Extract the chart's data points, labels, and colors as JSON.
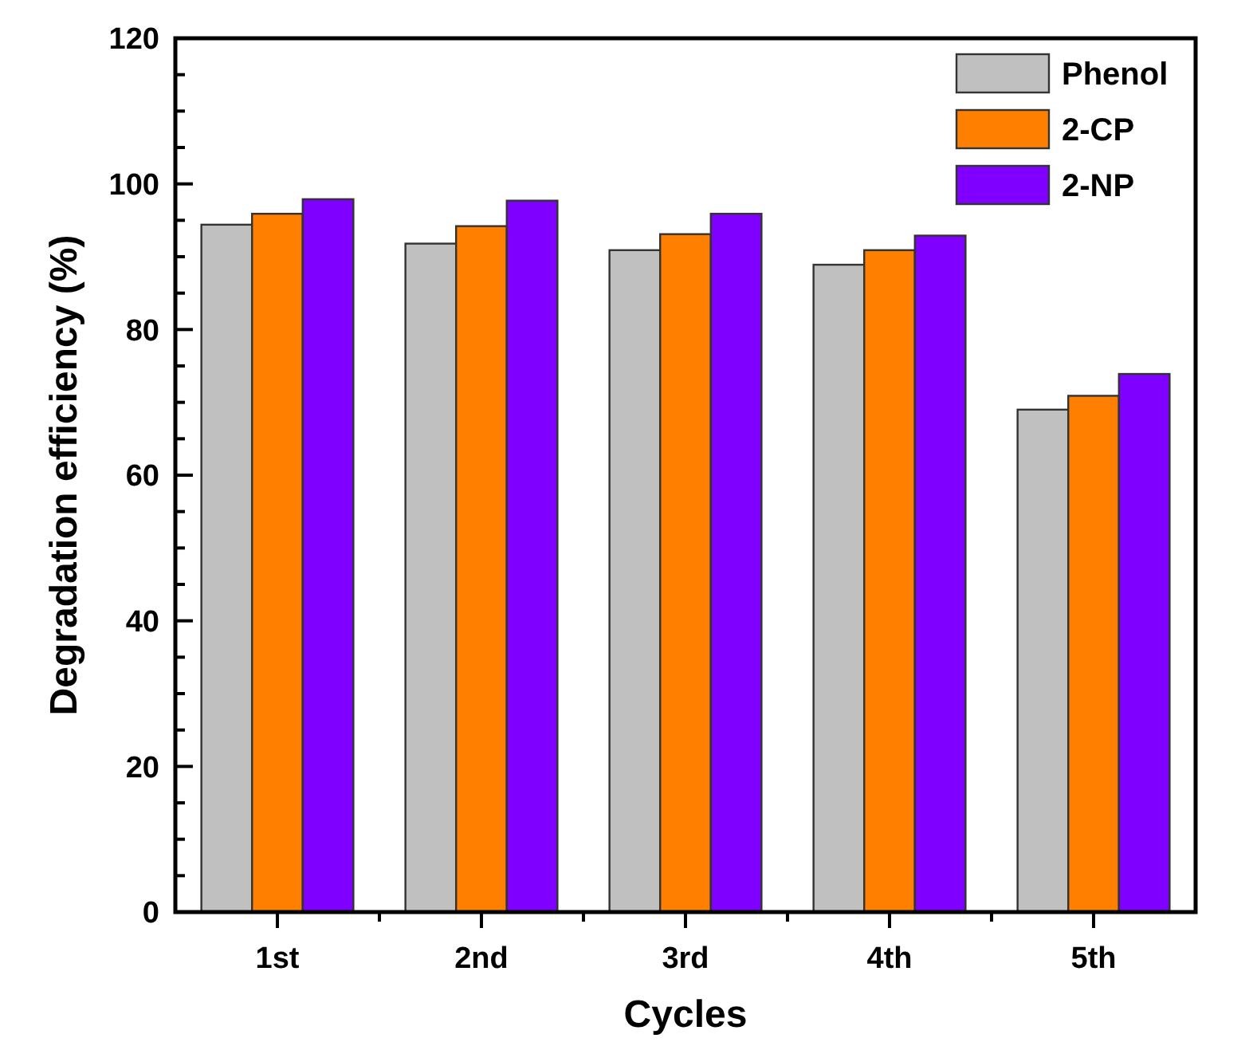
{
  "chart_data": {
    "type": "bar",
    "xlabel": "Cycles",
    "ylabel": "Degradation efficiency (%)",
    "categories": [
      "1st",
      "2nd",
      "3rd",
      "4th",
      "5th"
    ],
    "series": [
      {
        "name": "Phenol",
        "color": "#c0c0c0",
        "values": [
          94.4,
          91.8,
          90.9,
          88.9,
          69.0
        ]
      },
      {
        "name": "2-CP",
        "color": "#ff8000",
        "values": [
          95.9,
          94.2,
          93.1,
          90.9,
          70.9
        ]
      },
      {
        "name": "2-NP",
        "color": "#8000ff",
        "values": [
          97.9,
          97.7,
          95.9,
          92.9,
          73.9
        ]
      }
    ],
    "ylim": [
      0,
      120
    ],
    "yticks": [
      0,
      {
        "value": 5,
        "label": null
      },
      {
        "value": 10,
        "label": null
      },
      {
        "value": 15,
        "label": null
      },
      20,
      {
        "value": 25,
        "label": null
      },
      {
        "value": 30,
        "label": null
      },
      {
        "value": 35,
        "label": null
      },
      40,
      {
        "value": 45,
        "label": null
      },
      {
        "value": 50,
        "label": null
      },
      {
        "value": 55,
        "label": null
      },
      60,
      {
        "value": 65,
        "label": null
      },
      {
        "value": 70,
        "label": null
      },
      {
        "value": 75,
        "label": null
      },
      80,
      {
        "value": 85,
        "label": null
      },
      {
        "value": 90,
        "label": null
      },
      {
        "value": 95,
        "label": null
      },
      100,
      {
        "value": 105,
        "label": null
      },
      {
        "value": 110,
        "label": null
      },
      {
        "value": 115,
        "label": null
      },
      120
    ],
    "grid": false,
    "legend": "top right"
  }
}
